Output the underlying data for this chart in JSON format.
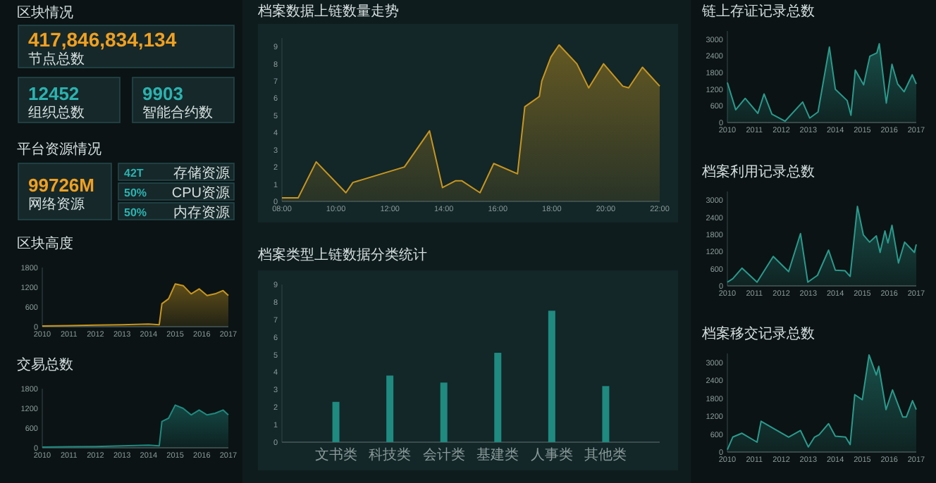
{
  "chart_data": [
    {
      "type": "other",
      "title": "区块情况",
      "annotations": [
        "417,846,834,134",
        "节点总数",
        "12452",
        "组织总数",
        "9903",
        "智能合约数"
      ]
    },
    {
      "type": "other",
      "title": "平台资源情况",
      "annotations": [
        "99726M",
        "网络资源",
        "42T",
        "存储资源",
        "50%",
        "CPU资源",
        "50%",
        "内存资源"
      ]
    },
    {
      "type": "area",
      "title": "区块高度",
      "color": "#c8961e",
      "xlim": [
        2010,
        2017
      ],
      "ylim": [
        0,
        1800
      ],
      "xticks": [
        2010,
        2011,
        2012,
        2013,
        2014,
        2015,
        2016,
        2017
      ],
      "yticks": [
        0,
        600,
        1200,
        1800
      ],
      "x": [
        2010,
        2011,
        2012,
        2013,
        2014,
        2014.4,
        2014.5,
        2014.75,
        2015,
        2015.3,
        2015.6,
        2015.9,
        2016.2,
        2016.5,
        2016.8,
        2017
      ],
      "values": [
        20,
        30,
        50,
        60,
        80,
        60,
        700,
        850,
        1300,
        1250,
        1000,
        1150,
        950,
        1000,
        1100,
        950
      ]
    },
    {
      "type": "area",
      "title": "交易总数",
      "color": "#1f8a80",
      "xlim": [
        2010,
        2017
      ],
      "ylim": [
        0,
        1800
      ],
      "xticks": [
        2010,
        2011,
        2012,
        2013,
        2014,
        2015,
        2016,
        2017
      ],
      "yticks": [
        0,
        600,
        1200,
        1800
      ],
      "x": [
        2010,
        2011,
        2012,
        2013,
        2014,
        2014.4,
        2014.5,
        2014.75,
        2015,
        2015.3,
        2015.6,
        2015.9,
        2016.2,
        2016.5,
        2016.8,
        2017
      ],
      "values": [
        20,
        30,
        40,
        60,
        80,
        60,
        800,
        900,
        1300,
        1200,
        1000,
        1150,
        1000,
        1050,
        1150,
        1000
      ]
    },
    {
      "type": "area",
      "title": "档案数据上链数量走势",
      "color": "#c8961e",
      "xlim": [
        8,
        22
      ],
      "ylim": [
        0,
        9.5
      ],
      "xticks": [
        {
          "value": 8,
          "label": "08:00"
        },
        {
          "value": 10,
          "label": "10:00"
        },
        {
          "value": 12,
          "label": "12:00"
        },
        {
          "value": 14,
          "label": "14:00"
        },
        {
          "value": 16,
          "label": "16:00"
        },
        {
          "value": 18,
          "label": "18:00"
        },
        {
          "value": 20,
          "label": "20:00"
        },
        {
          "value": 22,
          "label": "22:00"
        }
      ],
      "yticks": [
        0,
        1,
        2,
        3,
        4,
        5,
        6,
        7,
        8,
        9
      ],
      "x": [
        8,
        8.6,
        9.27,
        10.37,
        10.63,
        12.54,
        13.47,
        13.95,
        14.44,
        14.66,
        15.34,
        15.85,
        16.73,
        17.0,
        17.54,
        17.63,
        17.97,
        18.27,
        18.93,
        19.37,
        19.92,
        20.25,
        20.63,
        20.85,
        21.36,
        22
      ],
      "values": [
        0.2,
        0.2,
        2.3,
        0.5,
        1.1,
        2.0,
        4.1,
        0.8,
        1.2,
        1.2,
        0.5,
        2.2,
        1.6,
        5.5,
        6.1,
        7.0,
        8.4,
        9.1,
        8.0,
        6.6,
        8.0,
        7.4,
        6.7,
        6.6,
        7.8,
        6.7
      ]
    },
    {
      "type": "bar",
      "title": "档案类型上链数据分类统计",
      "color": "#1f8a80",
      "categories": [
        "文书类",
        "科技类",
        "会计类",
        "基建类",
        "人事类",
        "其他类"
      ],
      "values": [
        2.3,
        3.8,
        3.4,
        5.1,
        7.5,
        3.2
      ],
      "ylim": [
        0,
        9
      ],
      "yticks": [
        0,
        1,
        2,
        3,
        4,
        5,
        6,
        7,
        8,
        9
      ]
    },
    {
      "type": "area",
      "title": "链上存证记录总数",
      "color": "#2a9a8c",
      "xlim": [
        2010,
        2017
      ],
      "ylim": [
        0,
        3300
      ],
      "xticks": [
        2010,
        2011,
        2012,
        2013,
        2014,
        2015,
        2016,
        2017
      ],
      "yticks": [
        0,
        600,
        1200,
        1800,
        2400,
        3000
      ],
      "x": [
        2010,
        2010.31,
        2010.66,
        2011.13,
        2011.36,
        2011.65,
        2012.14,
        2012.79,
        2013.05,
        2013.36,
        2013.78,
        2014.0,
        2014.44,
        2014.58,
        2014.74,
        2015.05,
        2015.28,
        2015.54,
        2015.63,
        2015.89,
        2016.1,
        2016.31,
        2016.55,
        2016.85,
        2017
      ],
      "values": [
        1440,
        460,
        870,
        330,
        1030,
        300,
        50,
        740,
        160,
        380,
        2720,
        1200,
        790,
        260,
        1890,
        1360,
        2390,
        2510,
        2840,
        700,
        2100,
        1390,
        1110,
        1720,
        1390
      ]
    },
    {
      "type": "area",
      "title": "档案利用记录总数",
      "color": "#2a9a8c",
      "xlim": [
        2010,
        2017
      ],
      "ylim": [
        0,
        3300
      ],
      "xticks": [
        2010,
        2011,
        2012,
        2013,
        2014,
        2015,
        2016,
        2017
      ],
      "yticks": [
        0,
        600,
        1200,
        1800,
        2400,
        3000
      ],
      "x": [
        2010,
        2010.2,
        2010.54,
        2011.1,
        2011.7,
        2012.27,
        2012.71,
        2012.98,
        2013.34,
        2013.75,
        2014.0,
        2014.36,
        2014.55,
        2014.82,
        2015.04,
        2015.27,
        2015.52,
        2015.66,
        2015.84,
        2015.95,
        2016.1,
        2016.34,
        2016.57,
        2016.93,
        2017
      ],
      "values": [
        130,
        250,
        620,
        130,
        1030,
        500,
        1830,
        130,
        370,
        1250,
        550,
        530,
        330,
        2780,
        1780,
        1530,
        1750,
        1170,
        1920,
        1500,
        2120,
        800,
        1530,
        1170,
        1450
      ]
    },
    {
      "type": "area",
      "title": "档案移交记录总数",
      "color": "#2a9a8c",
      "xlim": [
        2010,
        2017
      ],
      "ylim": [
        0,
        3300
      ],
      "xticks": [
        2010,
        2011,
        2012,
        2013,
        2014,
        2015,
        2016,
        2017
      ],
      "yticks": [
        0,
        600,
        1200,
        1800,
        2400,
        3000
      ],
      "x": [
        2010,
        2010.2,
        2010.54,
        2011.1,
        2011.25,
        2012.27,
        2012.71,
        2013.0,
        2013.23,
        2013.4,
        2013.75,
        2014.0,
        2014.38,
        2014.55,
        2014.72,
        2015.0,
        2015.25,
        2015.52,
        2015.61,
        2015.88,
        2016.12,
        2016.5,
        2016.63,
        2016.86,
        2017
      ],
      "values": [
        80,
        500,
        630,
        330,
        1030,
        500,
        720,
        170,
        500,
        580,
        950,
        530,
        500,
        250,
        1920,
        1750,
        3250,
        2580,
        2870,
        1420,
        2080,
        1170,
        1170,
        1720,
        1420
      ]
    }
  ]
}
